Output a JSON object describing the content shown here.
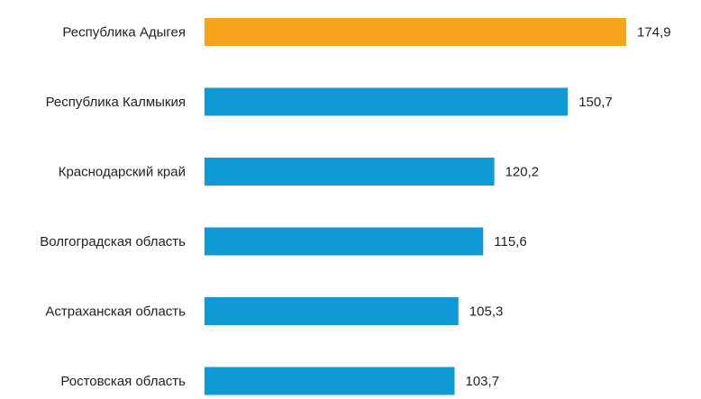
{
  "chart_data": {
    "type": "bar",
    "orientation": "horizontal",
    "title": "",
    "xlabel": "",
    "ylabel": "",
    "categories": [
      "Республика Адыгея",
      "Республика Калмыкия",
      "Краснодарский край",
      "Волгоградская область",
      "Астраханская область",
      "Ростовская область"
    ],
    "values": [
      174.9,
      150.7,
      120.2,
      115.6,
      105.3,
      103.7
    ],
    "value_labels": [
      "174,9",
      "150,7",
      "120,2",
      "115,6",
      "105,3",
      "103,7"
    ],
    "colors": {
      "highlight": "#f7a41d",
      "default": "#0f9ad6"
    },
    "highlight_index": 0,
    "xlim": [
      0,
      174.9
    ],
    "grid": false,
    "legend": "none"
  }
}
